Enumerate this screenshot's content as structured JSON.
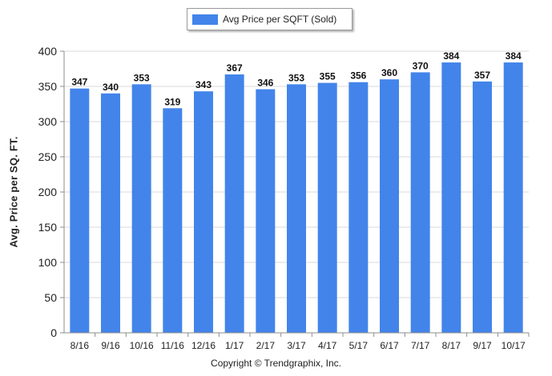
{
  "colors": {
    "bar": "#4284ea",
    "grid": "#d9d9d9",
    "axis": "#8c8c8c",
    "text": "#222222"
  },
  "legend": {
    "label": "Avg Price per SQFT (Sold)"
  },
  "footer": {
    "copyright": "Copyright © Trendgraphix, Inc."
  },
  "chart_data": {
    "type": "bar",
    "title": "",
    "xlabel": "",
    "ylabel": "Avg. Price per SQ. FT.",
    "categories": [
      "8/16",
      "9/16",
      "10/16",
      "11/16",
      "12/16",
      "1/17",
      "2/17",
      "3/17",
      "4/17",
      "5/17",
      "6/17",
      "7/17",
      "8/17",
      "9/17",
      "10/17"
    ],
    "series": [
      {
        "name": "Avg Price per SQFT (Sold)",
        "values": [
          347,
          340,
          353,
          319,
          343,
          367,
          346,
          353,
          355,
          356,
          360,
          370,
          384,
          357,
          384
        ]
      }
    ],
    "ylim": [
      0,
      400
    ],
    "yticks": [
      0,
      50,
      100,
      150,
      200,
      250,
      300,
      350,
      400
    ],
    "grid": true,
    "legend_position": "top-center",
    "data_labels": true
  }
}
